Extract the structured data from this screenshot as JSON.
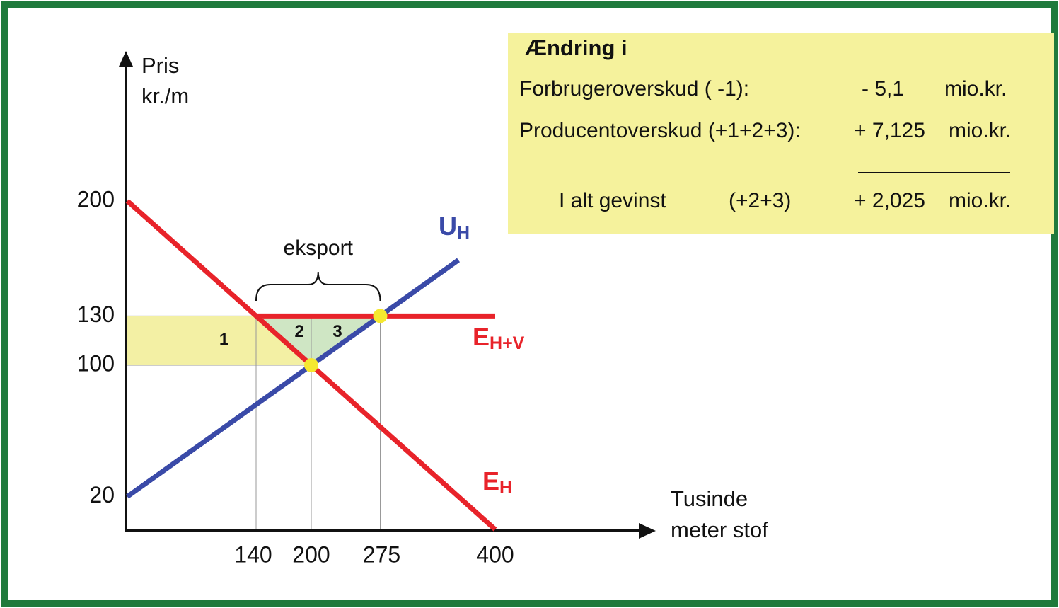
{
  "chart_data": {
    "type": "line",
    "xlabel": [
      "Tusinde",
      "meter stof"
    ],
    "ylabel": [
      "Pris",
      "kr./m"
    ],
    "xlim": [
      0,
      550
    ],
    "ylim": [
      0,
      287
    ],
    "xticks": [
      140,
      200,
      275,
      400
    ],
    "yticks": [
      20,
      100,
      130,
      200
    ],
    "series": [
      {
        "name": "E",
        "sub": "H",
        "color": "#e8232a",
        "x": [
          0,
          400
        ],
        "values": [
          200,
          0
        ]
      },
      {
        "name": "U",
        "sub": "H",
        "color": "#3a4aa8",
        "x": [
          0,
          360
        ],
        "values": [
          20,
          164
        ]
      },
      {
        "name": "E",
        "sub": "H+V",
        "color": "#e8232a",
        "x": [
          140,
          400
        ],
        "values": [
          130,
          130
        ]
      }
    ],
    "points": {
      "color": "#f5e830",
      "x": [
        200,
        275
      ],
      "values": [
        100,
        130
      ]
    },
    "areas": [
      "1",
      "2",
      "3"
    ],
    "bracket_label": "eksport",
    "box": {
      "title": "Ændring i",
      "rows": [
        [
          "Forbrugeroverskud  ( -1):",
          "- 5,1",
          "mio.kr."
        ],
        [
          "Producentoverskud  (+1+2+3):",
          "+ 7,125",
          "mio.kr."
        ],
        [
          "I alt gevinst",
          "(+2+3)",
          "+ 2,025",
          "mio.kr."
        ]
      ]
    }
  }
}
